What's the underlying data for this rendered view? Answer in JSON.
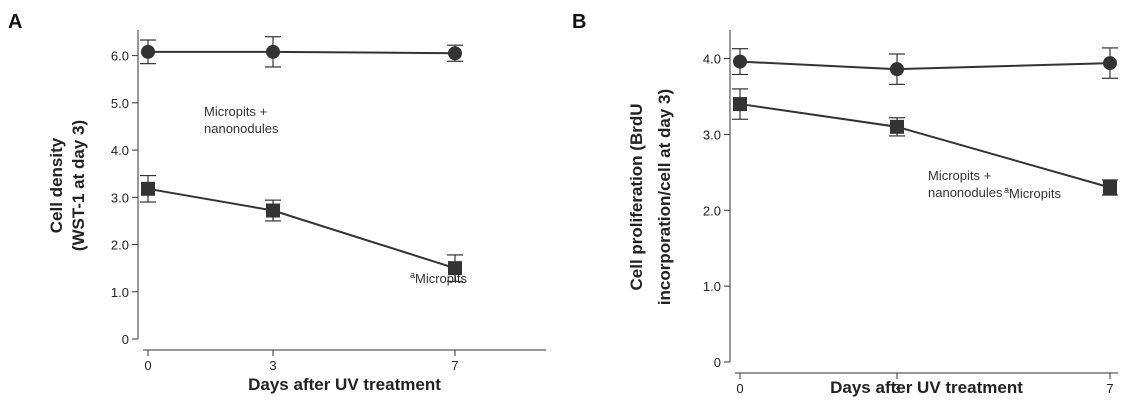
{
  "chart_data": [
    {
      "type": "line",
      "panel": "A",
      "xlabel": "Days after UV treatment",
      "ylabel_line1": "Cell density",
      "ylabel_line2": "(WST-1 at day 3)",
      "x_ticks": [
        "0",
        "3",
        "7"
      ],
      "y_ticks": [
        "0",
        "1.0",
        "2.0",
        "3.0",
        "4.0",
        "5.0",
        "6.0"
      ],
      "ylim": [
        0,
        6.5
      ],
      "xlim": [
        -0.3,
        7.5
      ],
      "series": [
        {
          "marker": "circle",
          "x": [
            0,
            3,
            7
          ],
          "y": [
            6.08,
            6.08,
            6.05
          ],
          "err": [
            0.25,
            0.32,
            0.17
          ],
          "annotation": [
            "Micropits +",
            "nanonodules"
          ],
          "annotation_superscript": ""
        },
        {
          "marker": "square",
          "x": [
            0,
            3,
            7
          ],
          "y": [
            3.18,
            2.72,
            1.5
          ],
          "err": [
            0.28,
            0.22,
            0.28
          ],
          "annotation": [
            "Micropits"
          ],
          "annotation_superscript": "a"
        }
      ]
    },
    {
      "type": "line",
      "panel": "B",
      "xlabel": "Days after UV treatment",
      "ylabel_line1": "Cell proliferation (BrdU",
      "ylabel_line2": "incorporation/cell at day 3)",
      "x_ticks": [
        "0",
        "3",
        "7"
      ],
      "y_ticks": [
        "0",
        "1.0",
        "2.0",
        "3.0",
        "4.0"
      ],
      "ylim": [
        0,
        4.35
      ],
      "xlim": [
        -0.3,
        7.5
      ],
      "series": [
        {
          "marker": "circle",
          "x": [
            0,
            3,
            7
          ],
          "y": [
            3.96,
            3.86,
            3.94
          ],
          "err": [
            0.17,
            0.2,
            0.2
          ],
          "annotation": [
            "Micropits +",
            "nanonodules"
          ],
          "annotation_superscript": ""
        },
        {
          "marker": "square",
          "x": [
            0,
            3,
            7
          ],
          "y": [
            3.4,
            3.1,
            2.3
          ],
          "err": [
            0.2,
            0.12,
            0.1
          ],
          "annotation": [
            "Micropits"
          ],
          "annotation_superscript": "a"
        }
      ]
    }
  ]
}
